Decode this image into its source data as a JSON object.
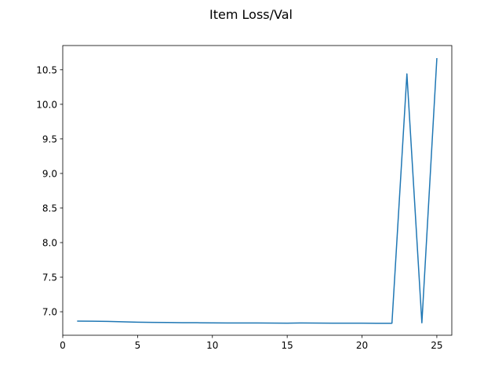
{
  "chart_data": {
    "type": "line",
    "title": "Item Loss/Val",
    "xlabel": "",
    "ylabel": "",
    "x": [
      1,
      2,
      3,
      4,
      5,
      6,
      7,
      8,
      9,
      10,
      11,
      12,
      13,
      14,
      15,
      16,
      17,
      18,
      19,
      20,
      21,
      22,
      23,
      24,
      25
    ],
    "series": [
      {
        "values": [
          6.865,
          6.863,
          6.86,
          6.855,
          6.849,
          6.846,
          6.844,
          6.842,
          6.841,
          6.839,
          6.838,
          6.837,
          6.837,
          6.836,
          6.835,
          6.838,
          6.836,
          6.834,
          6.834,
          6.835,
          6.833,
          6.833,
          10.44,
          6.84,
          10.66
        ],
        "color": "#1f77b4"
      }
    ],
    "xlim": [
      0,
      26
    ],
    "ylim": [
      6.66,
      10.85
    ],
    "xticks": [
      0,
      5,
      10,
      15,
      20,
      25
    ],
    "xtick_labels": [
      "0",
      "5",
      "10",
      "15",
      "20",
      "25"
    ],
    "yticks": [
      7.0,
      7.5,
      8.0,
      8.5,
      9.0,
      9.5,
      10.0,
      10.5
    ],
    "ytick_labels": [
      "7.0",
      "7.5",
      "8.0",
      "8.5",
      "9.0",
      "9.5",
      "10.0",
      "10.5"
    ],
    "grid": false,
    "legend": "none"
  }
}
